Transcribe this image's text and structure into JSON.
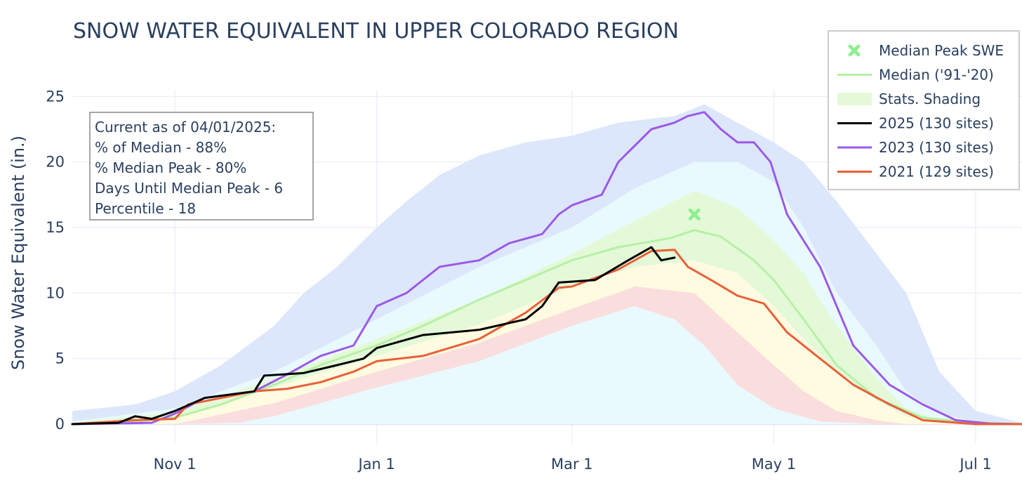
{
  "chart_data": {
    "type": "line",
    "title": "SNOW WATER EQUIVALENT IN UPPER COLORADO REGION",
    "ylabel": "Snow Water Equivalent (in.)",
    "xlabel": "",
    "ylim": [
      -1.5,
      25.5
    ],
    "x_date_range": [
      "2024-10-01",
      "2025-07-15"
    ],
    "y_ticks": [
      0,
      5,
      10,
      15,
      20,
      25
    ],
    "y_tick_labels": [
      "0",
      "5",
      "10",
      "15",
      "20",
      "25"
    ],
    "x_ticks": [
      {
        "date": "2024-11-01",
        "label": "Nov 1"
      },
      {
        "date": "2025-01-01",
        "label": "Jan 1"
      },
      {
        "date": "2025-03-01",
        "label": "Mar 1"
      },
      {
        "date": "2025-05-01",
        "label": "May 1"
      },
      {
        "date": "2025-07-01",
        "label": "Jul 1"
      }
    ],
    "grid": true,
    "info_box": {
      "lines": [
        "Current as of 04/01/2025:",
        "% of Median - 88%",
        "% Median Peak - 80%",
        "Days Until Median Peak - 6",
        "Percentile - 18"
      ]
    },
    "legend": {
      "position": "top-right",
      "entries": [
        {
          "label": "Median Peak SWE",
          "kind": "marker",
          "color": "#90ee90"
        },
        {
          "label": "Median ('91-'20)",
          "kind": "line",
          "color": "#b6f0a6"
        },
        {
          "label": "Stats. Shading",
          "kind": "band",
          "color": "#e4f9d8"
        },
        {
          "label": "2025 (130 sites)",
          "kind": "line",
          "color": "#000000"
        },
        {
          "label": "2023 (130 sites)",
          "kind": "line",
          "color": "#9b59e8"
        },
        {
          "label": "2021 (129 sites)",
          "kind": "line",
          "color": "#e8603a"
        }
      ]
    },
    "median_peak": {
      "x": "2025-04-07",
      "y": 16.0,
      "color": "#90ee90"
    },
    "bands": [
      {
        "fill": "#dde7fb",
        "upper": [
          [
            "2024-10-01",
            1.0
          ],
          [
            "2024-10-20",
            1.5
          ],
          [
            "2024-11-01",
            2.5
          ],
          [
            "2024-11-15",
            4.5
          ],
          [
            "2024-12-01",
            7.5
          ],
          [
            "2024-12-10",
            10
          ],
          [
            "2024-12-20",
            12
          ],
          [
            "2025-01-01",
            15
          ],
          [
            "2025-01-10",
            17
          ],
          [
            "2025-01-20",
            19
          ],
          [
            "2025-02-01",
            20.5
          ],
          [
            "2025-02-15",
            21.5
          ],
          [
            "2025-03-01",
            22
          ],
          [
            "2025-03-15",
            23
          ],
          [
            "2025-04-01",
            23.5
          ],
          [
            "2025-04-10",
            24.4
          ],
          [
            "2025-04-20",
            23
          ],
          [
            "2025-05-01",
            21.5
          ],
          [
            "2025-05-10",
            20
          ],
          [
            "2025-05-20",
            17
          ],
          [
            "2025-06-01",
            13
          ],
          [
            "2025-06-10",
            10
          ],
          [
            "2025-06-20",
            4
          ],
          [
            "2025-07-01",
            1
          ],
          [
            "2025-07-15",
            0.1
          ]
        ],
        "lower": [
          [
            "2024-10-01",
            0
          ],
          [
            "2025-07-15",
            0
          ]
        ]
      },
      {
        "fill": "#e9faff",
        "upper": [
          [
            "2024-10-01",
            0.2
          ],
          [
            "2024-11-01",
            1.2
          ],
          [
            "2024-12-01",
            4
          ],
          [
            "2025-01-01",
            8
          ],
          [
            "2025-02-01",
            12
          ],
          [
            "2025-03-01",
            15
          ],
          [
            "2025-03-20",
            18
          ],
          [
            "2025-04-07",
            20
          ],
          [
            "2025-04-20",
            20
          ],
          [
            "2025-05-01",
            18.5
          ],
          [
            "2025-05-10",
            15
          ],
          [
            "2025-05-20",
            10
          ],
          [
            "2025-06-01",
            6
          ],
          [
            "2025-06-10",
            2.5
          ],
          [
            "2025-06-20",
            0.8
          ],
          [
            "2025-07-01",
            0.2
          ],
          [
            "2025-07-15",
            0
          ]
        ],
        "lower": [
          [
            "2024-10-01",
            0
          ],
          [
            "2025-07-15",
            0
          ]
        ]
      },
      {
        "fill": "#e4f9d8",
        "upper": [
          [
            "2024-10-01",
            0.1
          ],
          [
            "2024-11-01",
            0.9
          ],
          [
            "2024-12-01",
            3.5
          ],
          [
            "2025-01-01",
            6.5
          ],
          [
            "2025-02-01",
            9.5
          ],
          [
            "2025-03-01",
            13
          ],
          [
            "2025-03-20",
            15.5
          ],
          [
            "2025-04-07",
            17.8
          ],
          [
            "2025-04-20",
            16.5
          ],
          [
            "2025-05-01",
            14
          ],
          [
            "2025-05-10",
            11.5
          ],
          [
            "2025-05-20",
            7.5
          ],
          [
            "2025-06-01",
            3.5
          ],
          [
            "2025-06-10",
            1.2
          ],
          [
            "2025-06-20",
            0.3
          ],
          [
            "2025-07-15",
            0
          ]
        ],
        "lower": [
          [
            "2024-10-01",
            0
          ],
          [
            "2024-11-01",
            0.4
          ],
          [
            "2024-12-01",
            2.8
          ],
          [
            "2025-01-01",
            5.2
          ],
          [
            "2025-02-01",
            7.6
          ],
          [
            "2025-03-01",
            10.5
          ],
          [
            "2025-03-20",
            12
          ],
          [
            "2025-04-07",
            12.5
          ],
          [
            "2025-04-20",
            11.5
          ],
          [
            "2025-05-01",
            9
          ],
          [
            "2025-05-10",
            6.5
          ],
          [
            "2025-05-20",
            4
          ],
          [
            "2025-06-01",
            1.8
          ],
          [
            "2025-06-10",
            0.6
          ],
          [
            "2025-06-20",
            0.2
          ],
          [
            "2025-07-15",
            0
          ]
        ]
      },
      {
        "fill": "#fffbe0",
        "upper": [
          [
            "2024-10-01",
            0
          ],
          [
            "2024-11-01",
            0.4
          ],
          [
            "2024-12-01",
            2.8
          ],
          [
            "2025-01-01",
            5.2
          ],
          [
            "2025-02-01",
            7.6
          ],
          [
            "2025-03-01",
            10.5
          ],
          [
            "2025-03-20",
            12
          ],
          [
            "2025-04-07",
            12.5
          ],
          [
            "2025-04-20",
            11.5
          ],
          [
            "2025-05-01",
            9
          ],
          [
            "2025-05-10",
            6.5
          ],
          [
            "2025-05-20",
            4
          ],
          [
            "2025-06-01",
            1.8
          ],
          [
            "2025-06-10",
            0.6
          ],
          [
            "2025-06-20",
            0.2
          ],
          [
            "2025-07-15",
            0
          ]
        ],
        "lower": [
          [
            "2024-10-01",
            0
          ],
          [
            "2024-11-01",
            0
          ],
          [
            "2024-12-01",
            1.6
          ],
          [
            "2025-01-01",
            4
          ],
          [
            "2025-02-01",
            6.2
          ],
          [
            "2025-03-01",
            8.8
          ],
          [
            "2025-03-20",
            10.5
          ],
          [
            "2025-04-07",
            10
          ],
          [
            "2025-04-20",
            7
          ],
          [
            "2025-05-01",
            4.5
          ],
          [
            "2025-05-10",
            2.5
          ],
          [
            "2025-05-20",
            1
          ],
          [
            "2025-06-01",
            0.3
          ],
          [
            "2025-06-10",
            0
          ],
          [
            "2025-07-15",
            0
          ]
        ]
      },
      {
        "fill": "#fadedd",
        "upper": [
          [
            "2024-10-01",
            0
          ],
          [
            "2024-11-01",
            0
          ],
          [
            "2024-12-01",
            1.6
          ],
          [
            "2025-01-01",
            4
          ],
          [
            "2025-02-01",
            6.2
          ],
          [
            "2025-03-01",
            8.8
          ],
          [
            "2025-03-20",
            10.5
          ],
          [
            "2025-04-07",
            10
          ],
          [
            "2025-04-20",
            7
          ],
          [
            "2025-05-01",
            4.5
          ],
          [
            "2025-05-10",
            2.5
          ],
          [
            "2025-05-20",
            1
          ],
          [
            "2025-06-01",
            0.3
          ],
          [
            "2025-06-10",
            0
          ],
          [
            "2025-07-15",
            0
          ]
        ],
        "lower": [
          [
            "2024-10-01",
            0
          ],
          [
            "2024-10-20",
            0
          ],
          [
            "2024-11-01",
            0
          ],
          [
            "2024-11-20",
            0.1
          ],
          [
            "2024-12-01",
            0.6
          ],
          [
            "2025-01-01",
            2.8
          ],
          [
            "2025-02-01",
            4.8
          ],
          [
            "2025-03-01",
            7.5
          ],
          [
            "2025-03-20",
            9
          ],
          [
            "2025-04-01",
            8
          ],
          [
            "2025-04-10",
            6
          ],
          [
            "2025-04-20",
            3
          ],
          [
            "2025-05-01",
            1.2
          ],
          [
            "2025-05-15",
            0.2
          ],
          [
            "2025-06-01",
            0
          ],
          [
            "2025-07-15",
            0
          ]
        ]
      }
    ],
    "series": [
      {
        "name": "Median ('91-'20)",
        "color": "#b6f0a6",
        "width": 3,
        "points": [
          [
            "2024-10-01",
            0
          ],
          [
            "2024-10-20",
            0.2
          ],
          [
            "2024-11-01",
            0.5
          ],
          [
            "2024-11-15",
            1.5
          ],
          [
            "2024-12-01",
            3.0
          ],
          [
            "2024-12-15",
            4.5
          ],
          [
            "2025-01-01",
            6.0
          ],
          [
            "2025-01-15",
            7.5
          ],
          [
            "2025-02-01",
            9.5
          ],
          [
            "2025-02-15",
            11.0
          ],
          [
            "2025-03-01",
            12.5
          ],
          [
            "2025-03-15",
            13.5
          ],
          [
            "2025-03-31",
            14.2
          ],
          [
            "2025-04-07",
            14.8
          ],
          [
            "2025-04-15",
            14.3
          ],
          [
            "2025-04-25",
            12.5
          ],
          [
            "2025-05-01",
            11.0
          ],
          [
            "2025-05-10",
            8.0
          ],
          [
            "2025-05-20",
            4.5
          ],
          [
            "2025-06-01",
            2.0
          ],
          [
            "2025-06-15",
            0.5
          ],
          [
            "2025-07-01",
            0.1
          ],
          [
            "2025-07-15",
            0
          ]
        ]
      },
      {
        "name": "2023 (130 sites)",
        "color": "#9b59e8",
        "width": 3,
        "points": [
          [
            "2024-10-01",
            0
          ],
          [
            "2024-10-25",
            0.1
          ],
          [
            "2024-11-01",
            0.8
          ],
          [
            "2024-11-10",
            2.0
          ],
          [
            "2024-11-25",
            2.5
          ],
          [
            "2024-12-05",
            3.8
          ],
          [
            "2024-12-15",
            5.2
          ],
          [
            "2024-12-25",
            6.0
          ],
          [
            "2025-01-01",
            9.0
          ],
          [
            "2025-01-10",
            10.0
          ],
          [
            "2025-01-20",
            12.0
          ],
          [
            "2025-02-01",
            12.5
          ],
          [
            "2025-02-10",
            13.8
          ],
          [
            "2025-02-20",
            14.5
          ],
          [
            "2025-02-25",
            16.0
          ],
          [
            "2025-03-01",
            16.7
          ],
          [
            "2025-03-10",
            17.5
          ],
          [
            "2025-03-15",
            20.0
          ],
          [
            "2025-03-25",
            22.5
          ],
          [
            "2025-04-01",
            23.0
          ],
          [
            "2025-04-05",
            23.5
          ],
          [
            "2025-04-10",
            23.8
          ],
          [
            "2025-04-15",
            22.5
          ],
          [
            "2025-04-20",
            21.5
          ],
          [
            "2025-04-25",
            21.5
          ],
          [
            "2025-04-30",
            20.0
          ],
          [
            "2025-05-05",
            16.0
          ],
          [
            "2025-05-15",
            12.0
          ],
          [
            "2025-05-25",
            6.0
          ],
          [
            "2025-06-05",
            3.0
          ],
          [
            "2025-06-15",
            1.5
          ],
          [
            "2025-06-25",
            0.3
          ],
          [
            "2025-07-05",
            0.05
          ],
          [
            "2025-07-15",
            0
          ]
        ]
      },
      {
        "name": "2021 (129 sites)",
        "color": "#e8603a",
        "width": 3,
        "points": [
          [
            "2024-10-01",
            0
          ],
          [
            "2024-10-20",
            0.3
          ],
          [
            "2024-11-01",
            0.4
          ],
          [
            "2024-11-05",
            1.5
          ],
          [
            "2024-11-15",
            2.0
          ],
          [
            "2024-11-25",
            2.5
          ],
          [
            "2024-12-05",
            2.7
          ],
          [
            "2024-12-15",
            3.2
          ],
          [
            "2024-12-25",
            4.0
          ],
          [
            "2025-01-01",
            4.8
          ],
          [
            "2025-01-15",
            5.2
          ],
          [
            "2025-02-01",
            6.5
          ],
          [
            "2025-02-15",
            8.5
          ],
          [
            "2025-02-25",
            10.4
          ],
          [
            "2025-03-01",
            10.5
          ],
          [
            "2025-03-15",
            11.8
          ],
          [
            "2025-03-25",
            13.2
          ],
          [
            "2025-04-01",
            13.3
          ],
          [
            "2025-04-05",
            12.0
          ],
          [
            "2025-04-12",
            11.0
          ],
          [
            "2025-04-20",
            9.8
          ],
          [
            "2025-04-28",
            9.2
          ],
          [
            "2025-05-05",
            7.0
          ],
          [
            "2025-05-15",
            5.0
          ],
          [
            "2025-05-25",
            3.0
          ],
          [
            "2025-06-05",
            1.5
          ],
          [
            "2025-06-15",
            0.3
          ],
          [
            "2025-07-01",
            0
          ],
          [
            "2025-07-15",
            0
          ]
        ]
      },
      {
        "name": "2025 (130 sites)",
        "color": "#000000",
        "width": 3,
        "points": [
          [
            "2024-10-01",
            0
          ],
          [
            "2024-10-15",
            0.1
          ],
          [
            "2024-10-20",
            0.6
          ],
          [
            "2024-10-25",
            0.4
          ],
          [
            "2024-11-01",
            1.0
          ],
          [
            "2024-11-10",
            2.0
          ],
          [
            "2024-11-25",
            2.5
          ],
          [
            "2024-11-28",
            3.7
          ],
          [
            "2024-12-10",
            3.9
          ],
          [
            "2024-12-20",
            4.5
          ],
          [
            "2024-12-28",
            5.0
          ],
          [
            "2025-01-01",
            5.8
          ],
          [
            "2025-01-15",
            6.8
          ],
          [
            "2025-02-01",
            7.2
          ],
          [
            "2025-02-15",
            8.0
          ],
          [
            "2025-02-20",
            9.0
          ],
          [
            "2025-02-25",
            10.8
          ],
          [
            "2025-03-08",
            11.0
          ],
          [
            "2025-03-18",
            12.5
          ],
          [
            "2025-03-25",
            13.5
          ],
          [
            "2025-03-28",
            12.5
          ],
          [
            "2025-04-01",
            12.7
          ]
        ]
      }
    ]
  }
}
